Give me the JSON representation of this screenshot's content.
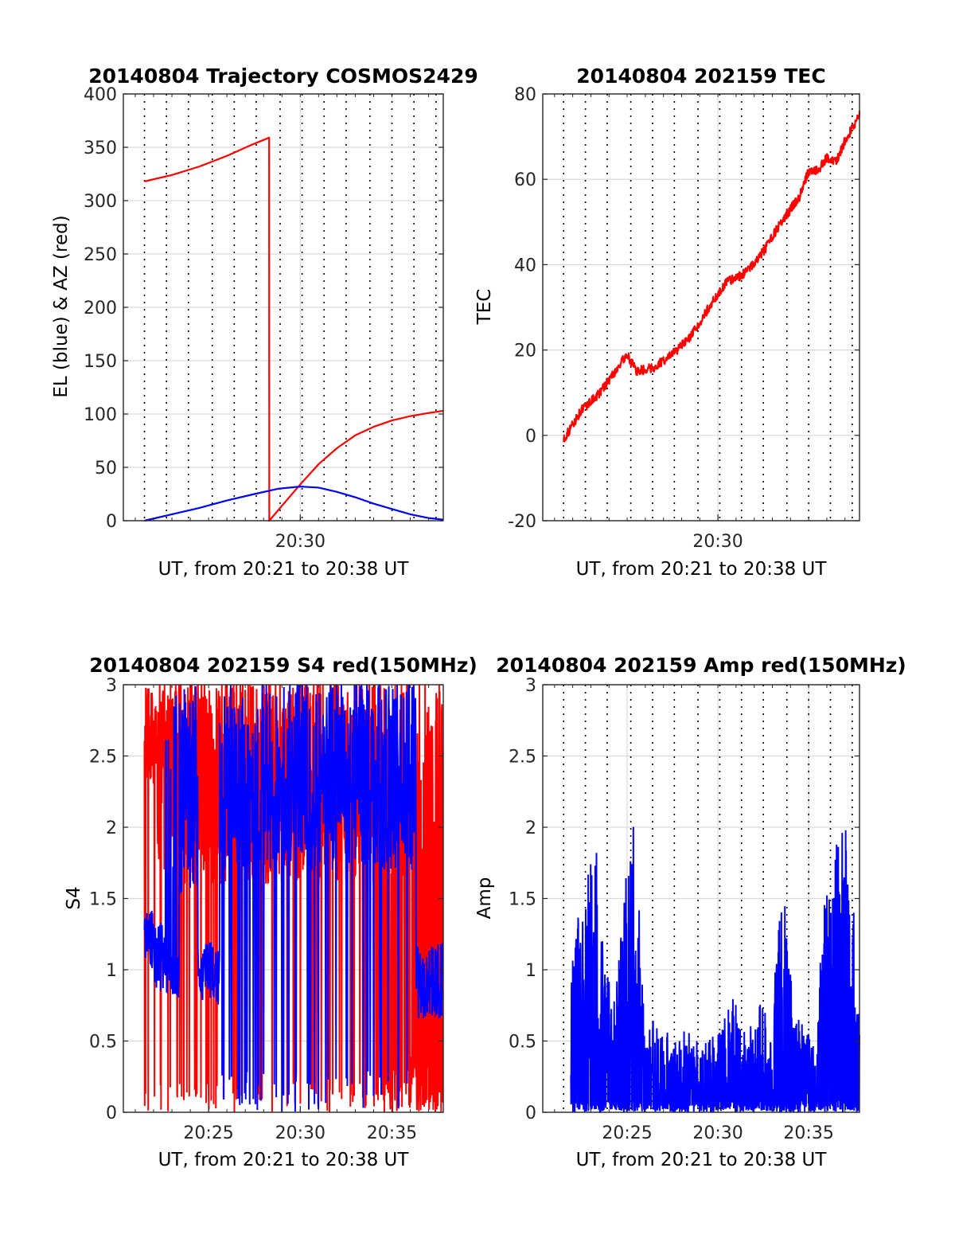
{
  "colors": {
    "el": "#0000ff",
    "az": "#ff0000",
    "tec": "#ff0000",
    "s4_red": "#ff0000",
    "s4_blue": "#0000ff",
    "amp": "#0000ff",
    "grid": "#d9d9d9",
    "vline": "#000000"
  },
  "chart_data": [
    {
      "type": "line",
      "title": "20140804 Trajectory COSMOS2429",
      "xlabel": "UT, from 20:21 to 20:38 UT",
      "ylabel": "EL (blue) & AZ (red)",
      "xlim": [
        20.35,
        37.8
      ],
      "ylim": [
        0,
        400
      ],
      "yticks": [
        0,
        50,
        100,
        150,
        200,
        250,
        300,
        350,
        400
      ],
      "xtick_labels": [
        {
          "x": 30,
          "label": "20:30"
        }
      ],
      "vertical_markers_min": [
        21.5,
        22.7,
        23.9,
        25.2,
        26.4,
        27.6,
        28.9,
        30.1,
        31.3,
        32.5,
        33.8,
        35.0,
        36.2,
        37.4
      ],
      "series": [
        {
          "name": "AZ (red)",
          "color": "az",
          "x": [
            21.5,
            23.0,
            24.5,
            26.0,
            27.3,
            28.3,
            28.31,
            29.0,
            30.0,
            31.0,
            32.0,
            33.0,
            34.0,
            35.0,
            36.0,
            37.0,
            37.8
          ],
          "y": [
            318,
            324,
            332,
            342,
            352,
            359,
            0,
            14,
            34,
            53,
            68,
            80,
            88,
            94,
            98,
            101,
            103
          ]
        },
        {
          "name": "EL (blue)",
          "color": "el",
          "x": [
            21.5,
            23.0,
            24.5,
            26.0,
            27.5,
            28.8,
            30.0,
            31.0,
            32.0,
            33.0,
            34.0,
            35.0,
            36.0,
            37.0,
            37.8
          ],
          "y": [
            0,
            6,
            12,
            19,
            25,
            30,
            32,
            31,
            27,
            22,
            16,
            11,
            6,
            2.5,
            1
          ]
        }
      ]
    },
    {
      "type": "line",
      "title": "20140804 202159 TEC",
      "xlabel": "UT, from 20:21 to 20:38 UT",
      "ylabel": "TEC",
      "xlim": [
        20.35,
        37.8
      ],
      "ylim": [
        -20,
        80
      ],
      "yticks": [
        -20,
        0,
        20,
        40,
        60,
        80
      ],
      "xtick_labels": [
        {
          "x": 30,
          "label": "20:30"
        }
      ],
      "vertical_markers_min": [
        21.5,
        22.7,
        23.9,
        25.2,
        26.4,
        27.6,
        28.9,
        30.1,
        31.3,
        32.5,
        33.8,
        35.0,
        36.2,
        37.4
      ],
      "series": [
        {
          "name": "TEC",
          "color": "tec",
          "x": [
            21.5,
            22.5,
            23.5,
            24.5,
            25.0,
            25.5,
            26.5,
            27.5,
            28.5,
            29.5,
            30.5,
            31.5,
            32.5,
            33.5,
            34.5,
            35.0,
            35.5,
            36.0,
            36.5,
            37.0,
            37.8
          ],
          "y": [
            -1,
            6,
            10,
            16,
            19,
            15,
            16,
            19,
            23,
            30,
            36,
            38,
            43,
            50,
            56,
            62,
            62,
            65,
            64,
            69,
            75
          ]
        }
      ]
    },
    {
      "type": "line",
      "title": "20140804 202159 S4 red(150MHz)",
      "xlabel": "UT, from 20:21 to 20:38 UT",
      "ylabel": "S4",
      "xlim": [
        20.35,
        37.8
      ],
      "ylim": [
        0,
        3
      ],
      "yticks": [
        0,
        0.5,
        1,
        1.5,
        2,
        2.5,
        3
      ],
      "xtick_labels": [
        {
          "x": 25,
          "label": "20:25"
        },
        {
          "x": 30,
          "label": "20:30"
        },
        {
          "x": 35,
          "label": "20:35"
        }
      ],
      "series": [
        {
          "name": "S4 red",
          "color": "s4_red",
          "pattern": "dense noise mostly between 2 and 3 with frequent drops to 0"
        },
        {
          "name": "S4 blue",
          "color": "s4_blue",
          "pattern": "around 1.1 near 20:22, 0.95 near 20:25, dense 2 to 3 from 20:26 to 20:36, 0.8 near 20:37"
        }
      ]
    },
    {
      "type": "line",
      "title": "20140804 202159 Amp red(150MHz)",
      "xlabel": "UT, from 20:21 to 20:38 UT",
      "ylabel": "Amp",
      "xlim": [
        20.35,
        37.8
      ],
      "ylim": [
        0,
        3
      ],
      "yticks": [
        0,
        0.5,
        1,
        1.5,
        2,
        2.5,
        3
      ],
      "xtick_labels": [
        {
          "x": 25,
          "label": "20:25"
        },
        {
          "x": 30,
          "label": "20:30"
        },
        {
          "x": 35,
          "label": "20:35"
        }
      ],
      "vertical_markers_min": [
        21.5,
        22.7,
        23.9,
        25.2,
        26.4,
        27.6,
        28.9,
        30.1,
        31.3,
        32.5,
        33.8,
        35.0,
        36.2,
        37.4
      ],
      "series": [
        {
          "name": "Amp",
          "color": "amp",
          "envelope": {
            "x": [
              21.9,
              22.2,
              22.6,
              23.0,
              23.3,
              23.7,
              24.2,
              24.7,
              25.0,
              25.3,
              25.6,
              26.0,
              27.0,
              28.0,
              29.0,
              30.0,
              30.8,
              31.5,
              32.0,
              32.5,
              33.0,
              33.3,
              33.7,
              34.2,
              35.0,
              35.4,
              35.8,
              36.2,
              36.6,
              37.0,
              37.4,
              37.8
            ],
            "y": [
              1.15,
              1.35,
              1.65,
              1.75,
              1.85,
              1.35,
              0.65,
              1.45,
              1.75,
              2.2,
              1.55,
              0.75,
              0.55,
              0.6,
              0.5,
              0.55,
              0.9,
              0.55,
              0.7,
              0.85,
              0.65,
              1.3,
              1.55,
              0.75,
              0.55,
              0.45,
              1.45,
              1.65,
              1.95,
              2.1,
              1.6,
              0.65
            ]
          }
        }
      ]
    }
  ]
}
